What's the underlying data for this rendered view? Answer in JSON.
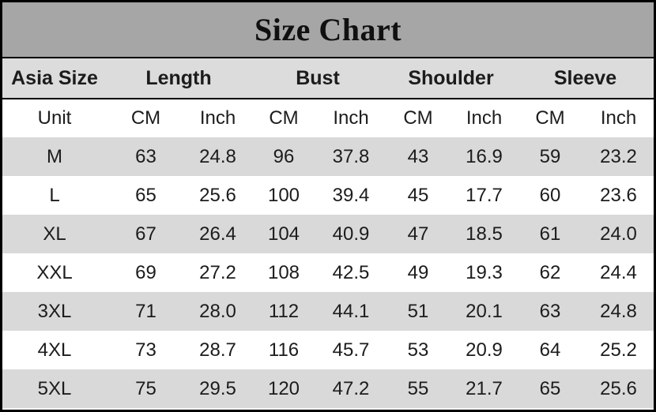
{
  "title": "Size Chart",
  "colors": {
    "title_bg": "#a6a6a6",
    "header_bg": "#dcdcdc",
    "stripe_bg": "#d9d9d9",
    "row_bg": "#ffffff",
    "border": "#000000",
    "text": "#1c1c1c"
  },
  "chart_data": {
    "type": "table",
    "title": "Size Chart",
    "group_headers": [
      {
        "label": "Asia Size",
        "span": 1
      },
      {
        "label": "Length",
        "span": 2
      },
      {
        "label": "Bust",
        "span": 2
      },
      {
        "label": "Shoulder",
        "span": 2
      },
      {
        "label": "Sleeve",
        "span": 2
      }
    ],
    "unit_row": [
      "Unit",
      "CM",
      "Inch",
      "CM",
      "Inch",
      "CM",
      "Inch",
      "CM",
      "Inch"
    ],
    "rows": [
      {
        "size": "M",
        "values": [
          "63",
          "24.8",
          "96",
          "37.8",
          "43",
          "16.9",
          "59",
          "23.2"
        ]
      },
      {
        "size": "L",
        "values": [
          "65",
          "25.6",
          "100",
          "39.4",
          "45",
          "17.7",
          "60",
          "23.6"
        ]
      },
      {
        "size": "XL",
        "values": [
          "67",
          "26.4",
          "104",
          "40.9",
          "47",
          "18.5",
          "61",
          "24.0"
        ]
      },
      {
        "size": "XXL",
        "values": [
          "69",
          "27.2",
          "108",
          "42.5",
          "49",
          "19.3",
          "62",
          "24.4"
        ]
      },
      {
        "size": "3XL",
        "values": [
          "71",
          "28.0",
          "112",
          "44.1",
          "51",
          "20.1",
          "63",
          "24.8"
        ]
      },
      {
        "size": "4XL",
        "values": [
          "73",
          "28.7",
          "116",
          "45.7",
          "53",
          "20.9",
          "64",
          "25.2"
        ]
      },
      {
        "size": "5XL",
        "values": [
          "75",
          "29.5",
          "120",
          "47.2",
          "55",
          "21.7",
          "65",
          "25.6"
        ]
      }
    ]
  }
}
